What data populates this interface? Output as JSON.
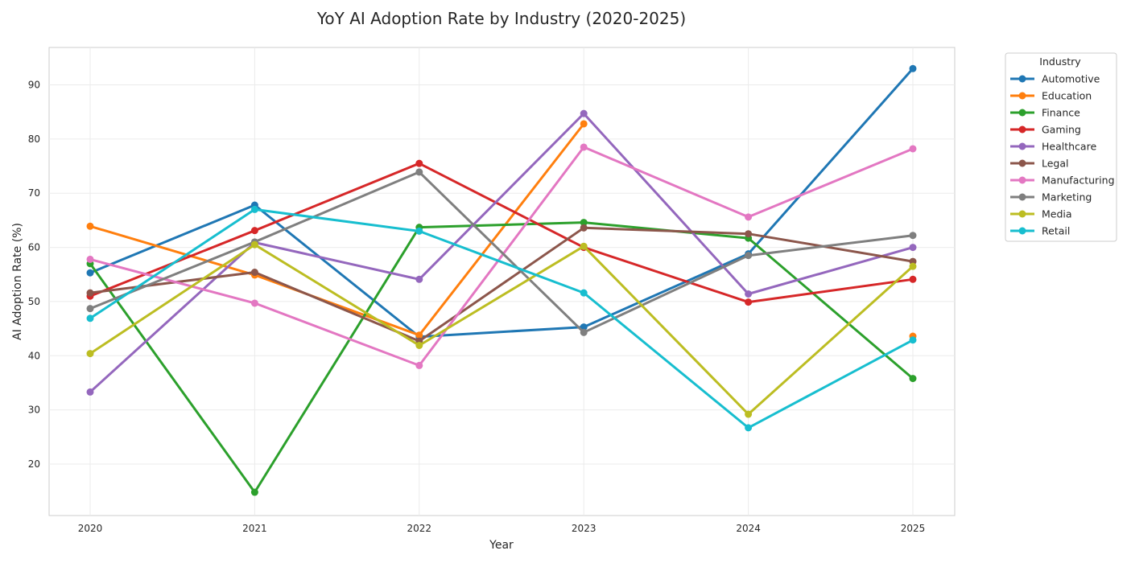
{
  "chart_data": {
    "type": "line",
    "title": "YoY AI Adoption Rate by Industry (2020-2025)",
    "xlabel": "Year",
    "ylabel": "AI Adoption Rate (%)",
    "x": [
      "2020",
      "2021",
      "2022",
      "2023",
      "2024",
      "2025"
    ],
    "yticks": [
      20,
      30,
      40,
      50,
      60,
      70,
      80,
      90
    ],
    "ylim": [
      10.5,
      96.9
    ],
    "grid": true,
    "legend": {
      "title": "Industry",
      "placement": "outside-top-right"
    },
    "series": [
      {
        "name": "Automotive",
        "color": "#1f77b4",
        "values": [
          55.3,
          67.8,
          43.5,
          45.3,
          58.8,
          93.0
        ]
      },
      {
        "name": "Education",
        "color": "#ff7f0e",
        "values": [
          63.9,
          54.9,
          43.8,
          82.8,
          null,
          43.6
        ]
      },
      {
        "name": "Finance",
        "color": "#2ca02c",
        "values": [
          57.0,
          14.8,
          63.7,
          64.6,
          61.7,
          35.8
        ]
      },
      {
        "name": "Gaming",
        "color": "#d62728",
        "values": [
          51.0,
          63.1,
          75.5,
          60.0,
          49.9,
          54.1
        ]
      },
      {
        "name": "Healthcare",
        "color": "#9467bd",
        "values": [
          33.3,
          60.9,
          54.1,
          84.7,
          51.4,
          60.0
        ]
      },
      {
        "name": "Legal",
        "color": "#8c564b",
        "values": [
          51.6,
          55.4,
          42.7,
          63.6,
          62.5,
          57.4
        ]
      },
      {
        "name": "Manufacturing",
        "color": "#e377c2",
        "values": [
          57.8,
          49.7,
          38.2,
          78.5,
          65.6,
          78.2
        ]
      },
      {
        "name": "Marketing",
        "color": "#7f7f7f",
        "values": [
          48.7,
          61.0,
          73.9,
          44.3,
          58.5,
          62.2
        ]
      },
      {
        "name": "Media",
        "color": "#bcbd22",
        "values": [
          40.4,
          60.5,
          41.9,
          60.2,
          29.2,
          56.5
        ]
      },
      {
        "name": "Retail",
        "color": "#17becf",
        "values": [
          46.9,
          67.0,
          63.0,
          51.6,
          26.7,
          42.9
        ]
      }
    ]
  }
}
